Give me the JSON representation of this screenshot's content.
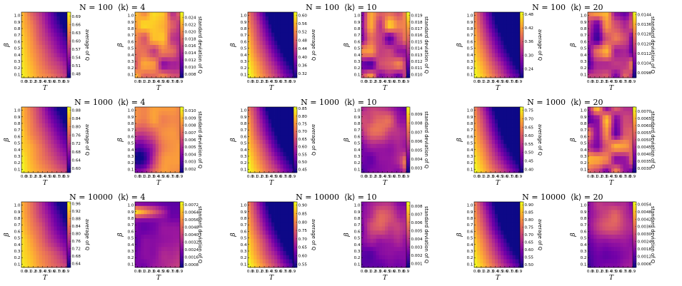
{
  "colormap": [
    "#0d0887",
    "#46039f",
    "#7201a8",
    "#9c179e",
    "#bd3786",
    "#d8576b",
    "#ed7953",
    "#fb9f3a",
    "#fdca26",
    "#f0f921"
  ],
  "chart_data": [
    {
      "type": "heatmap",
      "title_n": "N = 100",
      "title_k": "⟨k⟩ = 4",
      "left": {
        "cbar_label": "average of Q",
        "cbar_ticks": [
          "0.69",
          "0.66",
          "0.63",
          "0.60",
          "0.57",
          "0.54",
          "0.51",
          "0.48"
        ],
        "vmin": 0.465,
        "vmax": 0.705,
        "pattern": "avg"
      },
      "right": {
        "cbar_label": "standard deviation of Q",
        "cbar_ticks": [
          "0.024",
          "0.022",
          "0.020",
          "0.018",
          "0.016",
          "0.014",
          "0.012",
          "0.010",
          "0.008"
        ],
        "vmin": 0.007,
        "vmax": 0.0255,
        "pattern": "noisy_high"
      }
    },
    {
      "type": "heatmap",
      "title_n": "N = 100",
      "title_k": "⟨k⟩ = 10",
      "left": {
        "cbar_label": "average of Q",
        "cbar_ticks": [
          "0.60",
          "0.56",
          "0.52",
          "0.48",
          "0.44",
          "0.40",
          "0.36",
          "0.32"
        ],
        "vmin": 0.3,
        "vmax": 0.615,
        "pattern": "avg_strong"
      },
      "right": {
        "cbar_label": "standard deviation of Q",
        "cbar_ticks": [
          "0.019",
          "0.018",
          "0.017",
          "0.016",
          "0.015",
          "0.014",
          "0.013",
          "0.012",
          "0.011",
          "0.010"
        ],
        "vmin": 0.0095,
        "vmax": 0.0195,
        "pattern": "noisy_mid"
      }
    },
    {
      "type": "heatmap",
      "title_n": "N = 100",
      "title_k": "⟨k⟩ = 20",
      "left": {
        "cbar_label": "average of Q",
        "cbar_ticks": [
          "0.48",
          "0.42",
          "0.36",
          "0.30",
          "0.24"
        ],
        "vmin": 0.2,
        "vmax": 0.49,
        "pattern": "avg_strong"
      },
      "right": {
        "cbar_label": "standard deviation of Q",
        "cbar_ticks": [
          "0.0144",
          "0.0136",
          "0.0128",
          "0.0120",
          "0.0112",
          "0.0104",
          "0.0096"
        ],
        "vmin": 0.0092,
        "vmax": 0.0146,
        "pattern": "noisy_low"
      }
    },
    {
      "type": "heatmap",
      "title_n": "N = 1000",
      "title_k": "⟨k⟩ = 4",
      "left": {
        "cbar_label": "average of Q",
        "cbar_ticks": [
          "0.88",
          "0.84",
          "0.80",
          "0.76",
          "0.72",
          "0.68",
          "0.64",
          "0.60"
        ],
        "vmin": 0.58,
        "vmax": 0.895,
        "pattern": "avg"
      },
      "right": {
        "cbar_label": "standard deviation of Q",
        "cbar_ticks": [
          "0.010",
          "0.009",
          "0.008",
          "0.007",
          "0.006",
          "0.005",
          "0.004",
          "0.003",
          "0.002"
        ],
        "vmin": 0.0015,
        "vmax": 0.0105,
        "pattern": "smooth_high"
      }
    },
    {
      "type": "heatmap",
      "title_n": "N = 1000",
      "title_k": "⟨k⟩ = 10",
      "left": {
        "cbar_label": "average of Q",
        "cbar_ticks": [
          "0.85",
          "0.80",
          "0.75",
          "0.70",
          "0.65",
          "0.60",
          "0.55",
          "0.50",
          "0.45"
        ],
        "vmin": 0.43,
        "vmax": 0.86,
        "pattern": "avg_strong"
      },
      "right": {
        "cbar_label": "standard deviation of Q",
        "cbar_ticks": [
          "0.009",
          "0.008",
          "0.007",
          "0.006",
          "0.005",
          "0.004",
          "0.003"
        ],
        "vmin": 0.0025,
        "vmax": 0.0098,
        "pattern": "smooth_mid"
      }
    },
    {
      "type": "heatmap",
      "title_n": "N = 1000",
      "title_k": "⟨k⟩ = 20",
      "left": {
        "cbar_label": "average of Q",
        "cbar_ticks": [
          "0.75",
          "0.70",
          "0.65",
          "0.60",
          "0.55",
          "0.50",
          "0.45",
          "0.40"
        ],
        "vmin": 0.38,
        "vmax": 0.77,
        "pattern": "avg_strong"
      },
      "right": {
        "cbar_label": "standard deviation of Q",
        "cbar_ticks": [
          "0.0070",
          "0.0065",
          "0.0060",
          "0.0055",
          "0.0050",
          "0.0045",
          "0.0040",
          "0.0035",
          "0.0030"
        ],
        "vmin": 0.0027,
        "vmax": 0.0073,
        "pattern": "noisy_mid"
      }
    },
    {
      "type": "heatmap",
      "title_n": "N = 10000",
      "title_k": "⟨k⟩ = 4",
      "left": {
        "cbar_label": "average of Q",
        "cbar_ticks": [
          "0.96",
          "0.92",
          "0.88",
          "0.84",
          "0.80",
          "0.76",
          "0.72",
          "0.68",
          "0.64"
        ],
        "vmin": 0.62,
        "vmax": 0.97,
        "pattern": "avg"
      },
      "right": {
        "cbar_label": "standard deviation of Q",
        "cbar_ticks": [
          "0.0072",
          "0.0064",
          "0.0056",
          "0.0048",
          "0.0040",
          "0.0032",
          "0.0024",
          "0.0016",
          "0.0008"
        ],
        "vmin": 0.0005,
        "vmax": 0.0075,
        "pattern": "band_top"
      }
    },
    {
      "type": "heatmap",
      "title_n": "N = 10000",
      "title_k": "⟨k⟩ = 10",
      "left": {
        "cbar_label": "average of Q",
        "cbar_ticks": [
          "0.90",
          "0.85",
          "0.80",
          "0.75",
          "0.70",
          "0.65",
          "0.60",
          "0.55"
        ],
        "vmin": 0.53,
        "vmax": 0.92,
        "pattern": "avg_strong"
      },
      "right": {
        "cbar_label": "standard deviation of Q",
        "cbar_ticks": [
          "0.008",
          "0.007",
          "0.006",
          "0.005",
          "0.004",
          "0.003",
          "0.002",
          "0.001"
        ],
        "vmin": 0.0005,
        "vmax": 0.0085,
        "pattern": "smooth_low"
      }
    },
    {
      "type": "heatmap",
      "title_n": "N = 10000",
      "title_k": "⟨k⟩ = 20",
      "left": {
        "cbar_label": "average of Q",
        "cbar_ticks": [
          "0.90",
          "0.85",
          "0.80",
          "0.75",
          "0.70",
          "0.65",
          "0.60",
          "0.55",
          "0.50"
        ],
        "vmin": 0.48,
        "vmax": 0.92,
        "pattern": "avg_strong"
      },
      "right": {
        "cbar_label": "standard deviation of Q",
        "cbar_ticks": [
          "0.0054",
          "0.0048",
          "0.0042",
          "0.0036",
          "0.0030",
          "0.0024",
          "0.0018",
          "0.0012",
          "0.0006"
        ],
        "vmin": 0.0003,
        "vmax": 0.0056,
        "pattern": "smooth_low"
      }
    }
  ],
  "axes": {
    "x_label": "T",
    "y_label": "β",
    "x_ticks": [
      "0.0",
      "0.1",
      "0.2",
      "0.3",
      "0.4",
      "0.5",
      "0.6",
      "0.7",
      "0.8",
      "0.9"
    ],
    "y_ticks": [
      "0.1",
      "0.2",
      "0.3",
      "0.4",
      "0.5",
      "0.6",
      "0.7",
      "0.8",
      "0.9",
      "1.0"
    ]
  }
}
